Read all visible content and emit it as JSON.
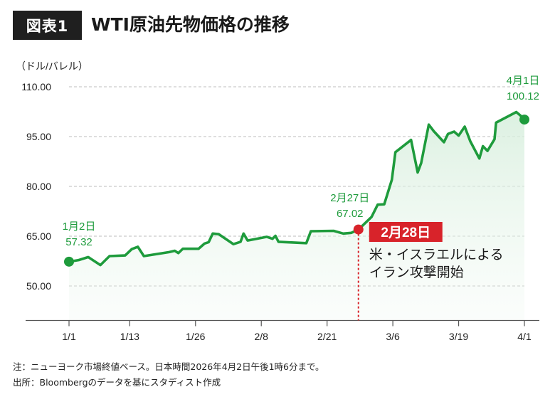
{
  "header": {
    "badge": "図表1",
    "title": "WTI原油先物価格の推移"
  },
  "chart_data": {
    "type": "line",
    "unit_label": "（ドル/バレル）",
    "y_ticks": [
      "50.00",
      "65.00",
      "80.00",
      "95.00",
      "110.00"
    ],
    "ylim": [
      41,
      115
    ],
    "x_ticks": [
      {
        "label": "1/1",
        "day": 0
      },
      {
        "label": "1/13",
        "day": 12
      },
      {
        "label": "1/26",
        "day": 25
      },
      {
        "label": "2/8",
        "day": 38
      },
      {
        "label": "2/21",
        "day": 51
      },
      {
        "label": "3/6",
        "day": 64
      },
      {
        "label": "3/19",
        "day": 77
      },
      {
        "label": "4/1",
        "day": 90
      }
    ],
    "xlim": [
      0,
      90
    ],
    "series": [
      {
        "name": "WTI",
        "color": "#1e9b3c",
        "points": [
          [
            0.0,
            57.3
          ],
          [
            1.9,
            57.8
          ],
          [
            3.8,
            58.7
          ],
          [
            6.2,
            56.3
          ],
          [
            8.0,
            59.0
          ],
          [
            11.1,
            59.2
          ],
          [
            12.4,
            61.1
          ],
          [
            13.6,
            61.8
          ],
          [
            14.8,
            59.0
          ],
          [
            19.8,
            60.2
          ],
          [
            20.9,
            60.6
          ],
          [
            21.6,
            59.9
          ],
          [
            22.5,
            61.2
          ],
          [
            25.6,
            61.2
          ],
          [
            26.8,
            62.8
          ],
          [
            27.6,
            63.2
          ],
          [
            28.4,
            65.8
          ],
          [
            29.6,
            65.6
          ],
          [
            32.5,
            62.6
          ],
          [
            33.9,
            63.3
          ],
          [
            34.5,
            65.8
          ],
          [
            35.3,
            63.7
          ],
          [
            38.4,
            64.6
          ],
          [
            39.1,
            64.8
          ],
          [
            40.2,
            64.2
          ],
          [
            40.8,
            65.1
          ],
          [
            41.4,
            63.3
          ],
          [
            46.9,
            62.9
          ],
          [
            47.8,
            66.5
          ],
          [
            52.3,
            66.6
          ],
          [
            54.2,
            65.8
          ],
          [
            55.8,
            66.0
          ],
          [
            57.2,
            67.0
          ],
          [
            59.8,
            70.8
          ],
          [
            61.0,
            74.5
          ],
          [
            62.3,
            74.6
          ],
          [
            63.8,
            82.0
          ],
          [
            64.5,
            90.3
          ],
          [
            67.6,
            94.0
          ],
          [
            68.9,
            84.2
          ],
          [
            69.6,
            87.0
          ],
          [
            71.1,
            98.6
          ],
          [
            72.1,
            96.6
          ],
          [
            74.1,
            93.3
          ],
          [
            74.9,
            95.8
          ],
          [
            76.1,
            96.5
          ],
          [
            77.0,
            95.3
          ],
          [
            78.2,
            98.0
          ],
          [
            79.3,
            93.6
          ],
          [
            81.1,
            88.4
          ],
          [
            81.8,
            92.1
          ],
          [
            82.7,
            90.7
          ],
          [
            84.1,
            94.2
          ],
          [
            84.4,
            99.2
          ],
          [
            88.4,
            102.4
          ],
          [
            89.4,
            101.1
          ],
          [
            90.0,
            100.1
          ]
        ]
      }
    ],
    "annotations": [
      {
        "day": 0,
        "value": 57.32,
        "date": "1月2日",
        "value_label": "57.32",
        "kind": "endpoint"
      },
      {
        "day": 57.2,
        "value": 67.02,
        "date": "2月27日",
        "value_label": "67.02",
        "kind": "event"
      },
      {
        "day": 90,
        "value": 100.12,
        "date": "4月1日",
        "value_label": "100.12",
        "kind": "endpoint"
      }
    ],
    "event": {
      "badge": "2月28日",
      "line1": "米・イスラエルによる",
      "line2": "イラン攻撃開始",
      "line_color": "#d8232a"
    }
  },
  "footnotes": {
    "note": "注：ニューヨーク市場終値ベース。日本時間2026年4月2日午後1時6分まで。",
    "source": "出所：Bloombergのデータを基にスタディスト作成"
  }
}
